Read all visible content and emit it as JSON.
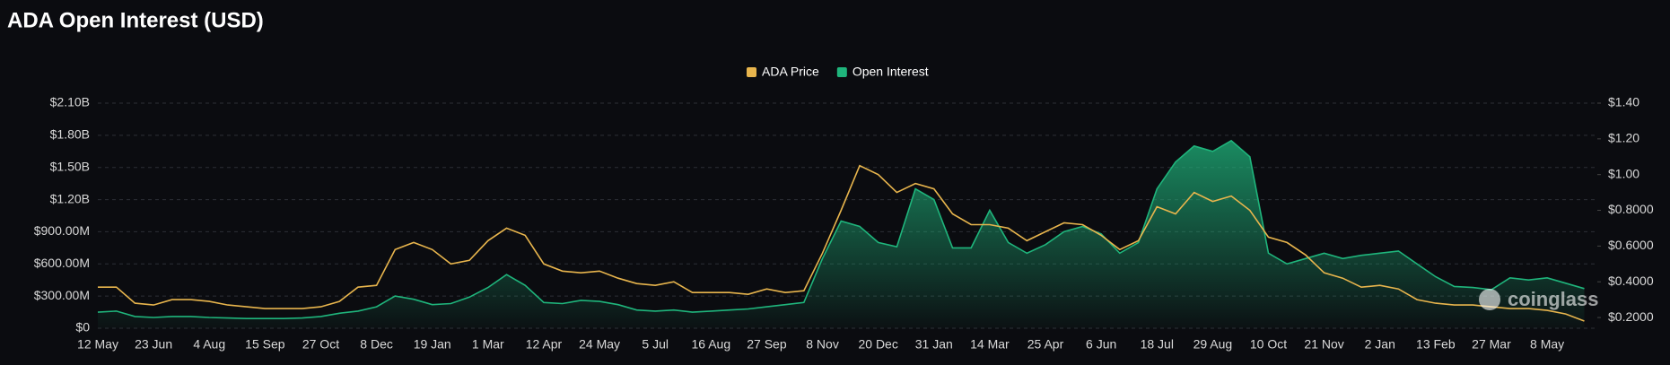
{
  "chart_data": {
    "type": "line-area",
    "title": "ADA Open Interest (USD)",
    "watermark": "coinglass",
    "categories": [
      "12 May",
      null,
      null,
      "23 Jun",
      null,
      null,
      "4 Aug",
      null,
      null,
      "15 Sep",
      null,
      null,
      "27 Oct",
      null,
      null,
      "8 Dec",
      null,
      null,
      "19 Jan",
      null,
      null,
      "1 Mar",
      null,
      null,
      "12 Apr",
      null,
      null,
      "24 May",
      null,
      null,
      "5 Jul",
      null,
      null,
      "16 Aug",
      null,
      null,
      "27 Sep",
      null,
      null,
      "8 Nov",
      null,
      null,
      "20 Dec",
      null,
      null,
      "31 Jan",
      null,
      null,
      "14 Mar",
      null,
      null,
      "25 Apr",
      null,
      null,
      "6 Jun",
      null,
      null,
      "18 Jul",
      null,
      null,
      "29 Aug",
      null,
      null,
      "10 Oct",
      null,
      null,
      "21 Nov",
      null,
      null,
      "2 Jan",
      null,
      null,
      "13 Feb",
      null,
      null,
      "27 Mar",
      null,
      null,
      "8 May",
      null,
      null
    ],
    "series": [
      {
        "name": "ADA Price",
        "color": "#e8b54d",
        "axis": "y2",
        "values": [
          0.37,
          0.37,
          0.28,
          0.27,
          0.3,
          0.3,
          0.29,
          0.27,
          0.26,
          0.25,
          0.25,
          0.25,
          0.26,
          0.29,
          0.37,
          0.38,
          0.58,
          0.62,
          0.58,
          0.5,
          0.52,
          0.63,
          0.7,
          0.66,
          0.5,
          0.46,
          0.45,
          0.46,
          0.42,
          0.39,
          0.38,
          0.4,
          0.34,
          0.34,
          0.34,
          0.33,
          0.36,
          0.34,
          0.35,
          0.56,
          0.8,
          1.05,
          1.0,
          0.9,
          0.95,
          0.92,
          0.78,
          0.72,
          0.72,
          0.7,
          0.63,
          0.68,
          0.73,
          0.72,
          0.66,
          0.58,
          0.63,
          0.82,
          0.78,
          0.9,
          0.85,
          0.88,
          0.8,
          0.65,
          0.62,
          0.55,
          0.45,
          0.42,
          0.37,
          0.38,
          0.36,
          0.3,
          0.28,
          0.27,
          0.27,
          0.26,
          0.25,
          0.25,
          0.24,
          0.22,
          0.18
        ]
      },
      {
        "name": "Open Interest",
        "color": "#1fb57c",
        "axis": "y",
        "values": [
          150000000,
          160000000,
          110000000,
          100000000,
          110000000,
          110000000,
          100000000,
          95000000,
          90000000,
          90000000,
          90000000,
          95000000,
          110000000,
          140000000,
          160000000,
          200000000,
          300000000,
          270000000,
          220000000,
          230000000,
          290000000,
          380000000,
          500000000,
          400000000,
          240000000,
          230000000,
          260000000,
          250000000,
          220000000,
          170000000,
          160000000,
          170000000,
          150000000,
          160000000,
          170000000,
          180000000,
          200000000,
          220000000,
          240000000,
          650000000,
          1000000000,
          950000000,
          800000000,
          760000000,
          1300000000,
          1200000000,
          750000000,
          750000000,
          1100000000,
          800000000,
          700000000,
          780000000,
          900000000,
          950000000,
          880000000,
          700000000,
          800000000,
          1300000000,
          1550000000,
          1700000000,
          1650000000,
          1750000000,
          1600000000,
          700000000,
          600000000,
          650000000,
          700000000,
          650000000,
          680000000,
          700000000,
          720000000,
          600000000,
          480000000,
          390000000,
          380000000,
          360000000,
          470000000,
          450000000,
          470000000,
          420000000,
          370000000
        ]
      }
    ],
    "ylim": [
      0,
      2100000000
    ],
    "yticks": [
      {
        "value": 0,
        "label": "$0"
      },
      {
        "value": 300000000,
        "label": "$300.00M"
      },
      {
        "value": 600000000,
        "label": "$600.00M"
      },
      {
        "value": 900000000,
        "label": "$900.00M"
      },
      {
        "value": 1200000000,
        "label": "$1.20B"
      },
      {
        "value": 1500000000,
        "label": "$1.50B"
      },
      {
        "value": 1800000000,
        "label": "$1.80B"
      },
      {
        "value": 2100000000,
        "label": "$2.10B"
      }
    ],
    "y2lim": [
      0.14,
      1.4
    ],
    "y2ticks": [
      {
        "value": 0.2,
        "label": "$0.2000"
      },
      {
        "value": 0.4,
        "label": "$0.4000"
      },
      {
        "value": 0.6,
        "label": "$0.6000"
      },
      {
        "value": 0.8,
        "label": "$0.8000"
      },
      {
        "value": 1.0,
        "label": "$1.00"
      },
      {
        "value": 1.2,
        "label": "$1.20"
      },
      {
        "value": 1.4,
        "label": "$1.40"
      }
    ],
    "grid": true,
    "legend": "top"
  }
}
